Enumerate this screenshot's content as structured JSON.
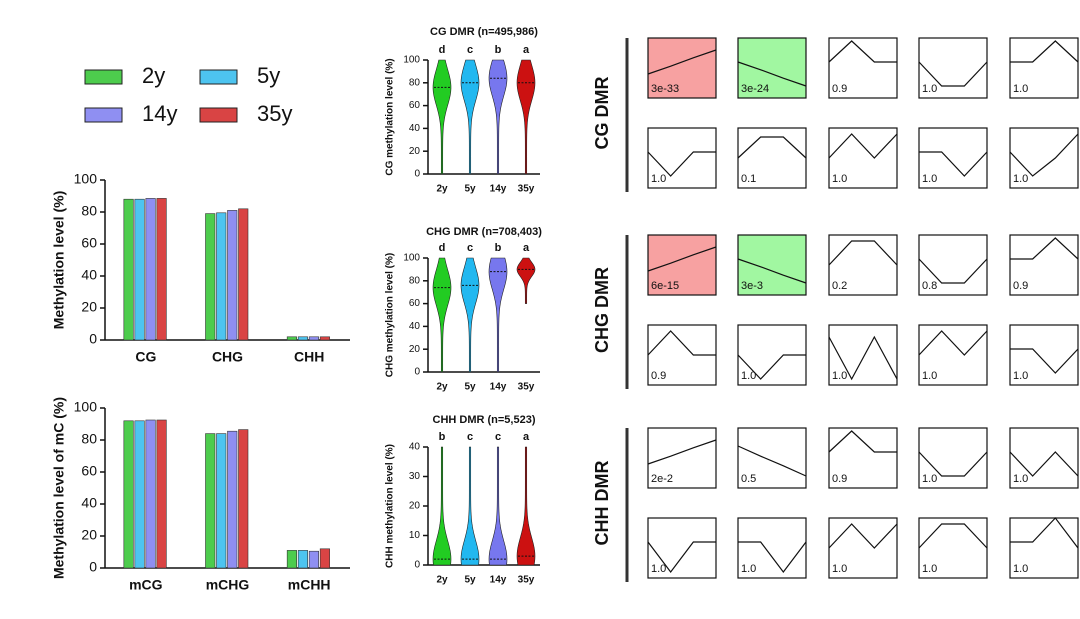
{
  "chart_data": [
    {
      "type": "bar",
      "ylabel": "Methylation level  (%)",
      "categories": [
        "CG",
        "CHG",
        "CHH"
      ],
      "series": [
        {
          "name": "2y",
          "color": "#4dcc4d",
          "values": [
            88,
            79,
            2
          ]
        },
        {
          "name": "5y",
          "color": "#4dc4f0",
          "values": [
            88,
            79.5,
            2
          ]
        },
        {
          "name": "14y",
          "color": "#8f8ff2",
          "values": [
            88.5,
            81,
            2
          ]
        },
        {
          "name": "35y",
          "color": "#d94444",
          "values": [
            88.5,
            82,
            2
          ]
        }
      ],
      "ylim": [
        0,
        100
      ],
      "yticks": [
        0,
        20,
        40,
        60,
        80,
        100
      ],
      "legend": "top-left"
    },
    {
      "type": "bar",
      "ylabel": "Methylation level of mC (%)",
      "categories": [
        "mCG",
        "mCHG",
        "mCHH"
      ],
      "series": [
        {
          "color": "#4dcc4d",
          "values": [
            92,
            84,
            11
          ]
        },
        {
          "color": "#4dc4f0",
          "values": [
            92,
            84,
            11
          ]
        },
        {
          "color": "#8f8ff2",
          "values": [
            92.5,
            85.5,
            10.5
          ]
        },
        {
          "color": "#d94444",
          "values": [
            92.5,
            86.5,
            12
          ]
        }
      ],
      "ylim": [
        0,
        100
      ],
      "yticks": [
        0,
        20,
        40,
        60,
        80,
        100
      ]
    },
    {
      "type": "violin",
      "title": "CG DMR (n=495,986)",
      "ylabel": "CG methylation level (%)",
      "categories": [
        "2y",
        "5y",
        "14y",
        "35y"
      ],
      "letters": [
        "d",
        "c",
        "b",
        "a"
      ],
      "colors": [
        "#22cc22",
        "#22b8f0",
        "#7777ee",
        "#cc1111"
      ],
      "values": [
        76,
        80,
        84,
        80
      ],
      "min": [
        0,
        0,
        0,
        0
      ],
      "max": [
        100,
        100,
        100,
        100
      ],
      "ylim": [
        0,
        100
      ],
      "yticks": [
        0,
        20,
        40,
        60,
        80,
        100
      ]
    },
    {
      "type": "violin",
      "title": "CHG DMR (n=708,403)",
      "ylabel": "CHG methylation level (%)",
      "categories": [
        "2y",
        "5y",
        "14y",
        "35y"
      ],
      "letters": [
        "d",
        "c",
        "b",
        "a"
      ],
      "colors": [
        "#22cc22",
        "#22b8f0",
        "#7777ee",
        "#cc1111"
      ],
      "values": [
        74,
        76,
        88,
        90
      ],
      "min": [
        0,
        0,
        0,
        60
      ],
      "max": [
        100,
        100,
        100,
        100
      ],
      "ylim": [
        0,
        100
      ],
      "yticks": [
        0,
        20,
        40,
        60,
        80,
        100
      ]
    },
    {
      "type": "violin",
      "title": "CHH DMR (n=5,523)",
      "ylabel": "CHH methylation level (%)",
      "categories": [
        "2y",
        "5y",
        "14y",
        "35y"
      ],
      "letters": [
        "b",
        "c",
        "c",
        "a"
      ],
      "colors": [
        "#22cc22",
        "#22b8f0",
        "#7777ee",
        "#cc1111"
      ],
      "values": [
        2,
        2,
        2,
        3
      ],
      "min": [
        0,
        0,
        0,
        0
      ],
      "max": [
        40,
        40,
        40,
        40
      ],
      "ylim": [
        0,
        40
      ],
      "yticks": [
        0,
        10,
        20,
        30,
        40
      ]
    },
    {
      "type": "trend-grid",
      "groups": [
        {
          "label": "CG DMR",
          "panels": [
            {
              "label": "3e-33",
              "color": "#f7a1a1",
              "values": [
                0.4,
                0.53,
                0.67,
                0.8
              ]
            },
            {
              "label": "3e-24",
              "color": "#a1f7a1",
              "values": [
                0.6,
                0.47,
                0.33,
                0.2
              ]
            },
            {
              "label": "0.9",
              "color": "#ffffff",
              "values": [
                0.6,
                0.95,
                0.6,
                0.6
              ]
            },
            {
              "label": "1.0",
              "color": "#ffffff",
              "values": [
                0.6,
                0.2,
                0.2,
                0.6
              ]
            },
            {
              "label": "1.0",
              "color": "#ffffff",
              "values": [
                0.6,
                0.6,
                0.95,
                0.6
              ]
            },
            {
              "label": "1.0",
              "color": "#ffffff",
              "values": [
                0.6,
                0.2,
                0.6,
                0.6
              ]
            },
            {
              "label": "0.1",
              "color": "#ffffff",
              "values": [
                0.5,
                0.85,
                0.85,
                0.5
              ]
            },
            {
              "label": "1.0",
              "color": "#ffffff",
              "values": [
                0.5,
                0.9,
                0.5,
                0.9
              ]
            },
            {
              "label": "1.0",
              "color": "#ffffff",
              "values": [
                0.6,
                0.6,
                0.2,
                0.6
              ]
            },
            {
              "label": "1.0",
              "color": "#ffffff",
              "values": [
                0.6,
                0.2,
                0.5,
                0.9
              ]
            }
          ]
        },
        {
          "label": "CHG DMR",
          "panels": [
            {
              "label": "6e-15",
              "color": "#f7a1a1",
              "values": [
                0.4,
                0.53,
                0.67,
                0.8
              ]
            },
            {
              "label": "3e-3",
              "color": "#a1f7a1",
              "values": [
                0.6,
                0.47,
                0.33,
                0.2
              ]
            },
            {
              "label": "0.2",
              "color": "#ffffff",
              "values": [
                0.5,
                0.9,
                0.9,
                0.5
              ]
            },
            {
              "label": "0.8",
              "color": "#ffffff",
              "values": [
                0.6,
                0.2,
                0.2,
                0.6
              ]
            },
            {
              "label": "0.9",
              "color": "#ffffff",
              "values": [
                0.6,
                0.6,
                0.95,
                0.6
              ]
            },
            {
              "label": "0.9",
              "color": "#ffffff",
              "values": [
                0.5,
                0.9,
                0.5,
                0.5
              ]
            },
            {
              "label": "1.0",
              "color": "#ffffff",
              "values": [
                0.5,
                0.1,
                0.5,
                0.5
              ]
            },
            {
              "label": "1.0",
              "color": "#ffffff",
              "values": [
                0.8,
                0.1,
                0.8,
                0.1
              ]
            },
            {
              "label": "1.0",
              "color": "#ffffff",
              "values": [
                0.5,
                0.9,
                0.5,
                0.9
              ]
            },
            {
              "label": "1.0",
              "color": "#ffffff",
              "values": [
                0.6,
                0.6,
                0.2,
                0.6
              ]
            }
          ]
        },
        {
          "label": "CHH DMR",
          "panels": [
            {
              "label": "2e-2",
              "color": "#ffffff",
              "values": [
                0.4,
                0.53,
                0.67,
                0.8
              ]
            },
            {
              "label": "0.5",
              "color": "#ffffff",
              "values": [
                0.7,
                0.53,
                0.37,
                0.2
              ]
            },
            {
              "label": "0.9",
              "color": "#ffffff",
              "values": [
                0.6,
                0.95,
                0.6,
                0.6
              ]
            },
            {
              "label": "1.0",
              "color": "#ffffff",
              "values": [
                0.6,
                0.2,
                0.2,
                0.6
              ]
            },
            {
              "label": "1.0",
              "color": "#ffffff",
              "values": [
                0.6,
                0.2,
                0.6,
                0.2
              ]
            },
            {
              "label": "1.0",
              "color": "#ffffff",
              "values": [
                0.6,
                0.1,
                0.6,
                0.6
              ]
            },
            {
              "label": "1.0",
              "color": "#ffffff",
              "values": [
                0.6,
                0.6,
                0.1,
                0.6
              ]
            },
            {
              "label": "1.0",
              "color": "#ffffff",
              "values": [
                0.5,
                0.9,
                0.5,
                0.9
              ]
            },
            {
              "label": "1.0",
              "color": "#ffffff",
              "values": [
                0.5,
                0.9,
                0.9,
                0.5
              ]
            },
            {
              "label": "1.0",
              "color": "#ffffff",
              "values": [
                0.6,
                0.6,
                1.0,
                0.5
              ]
            }
          ]
        }
      ]
    }
  ]
}
